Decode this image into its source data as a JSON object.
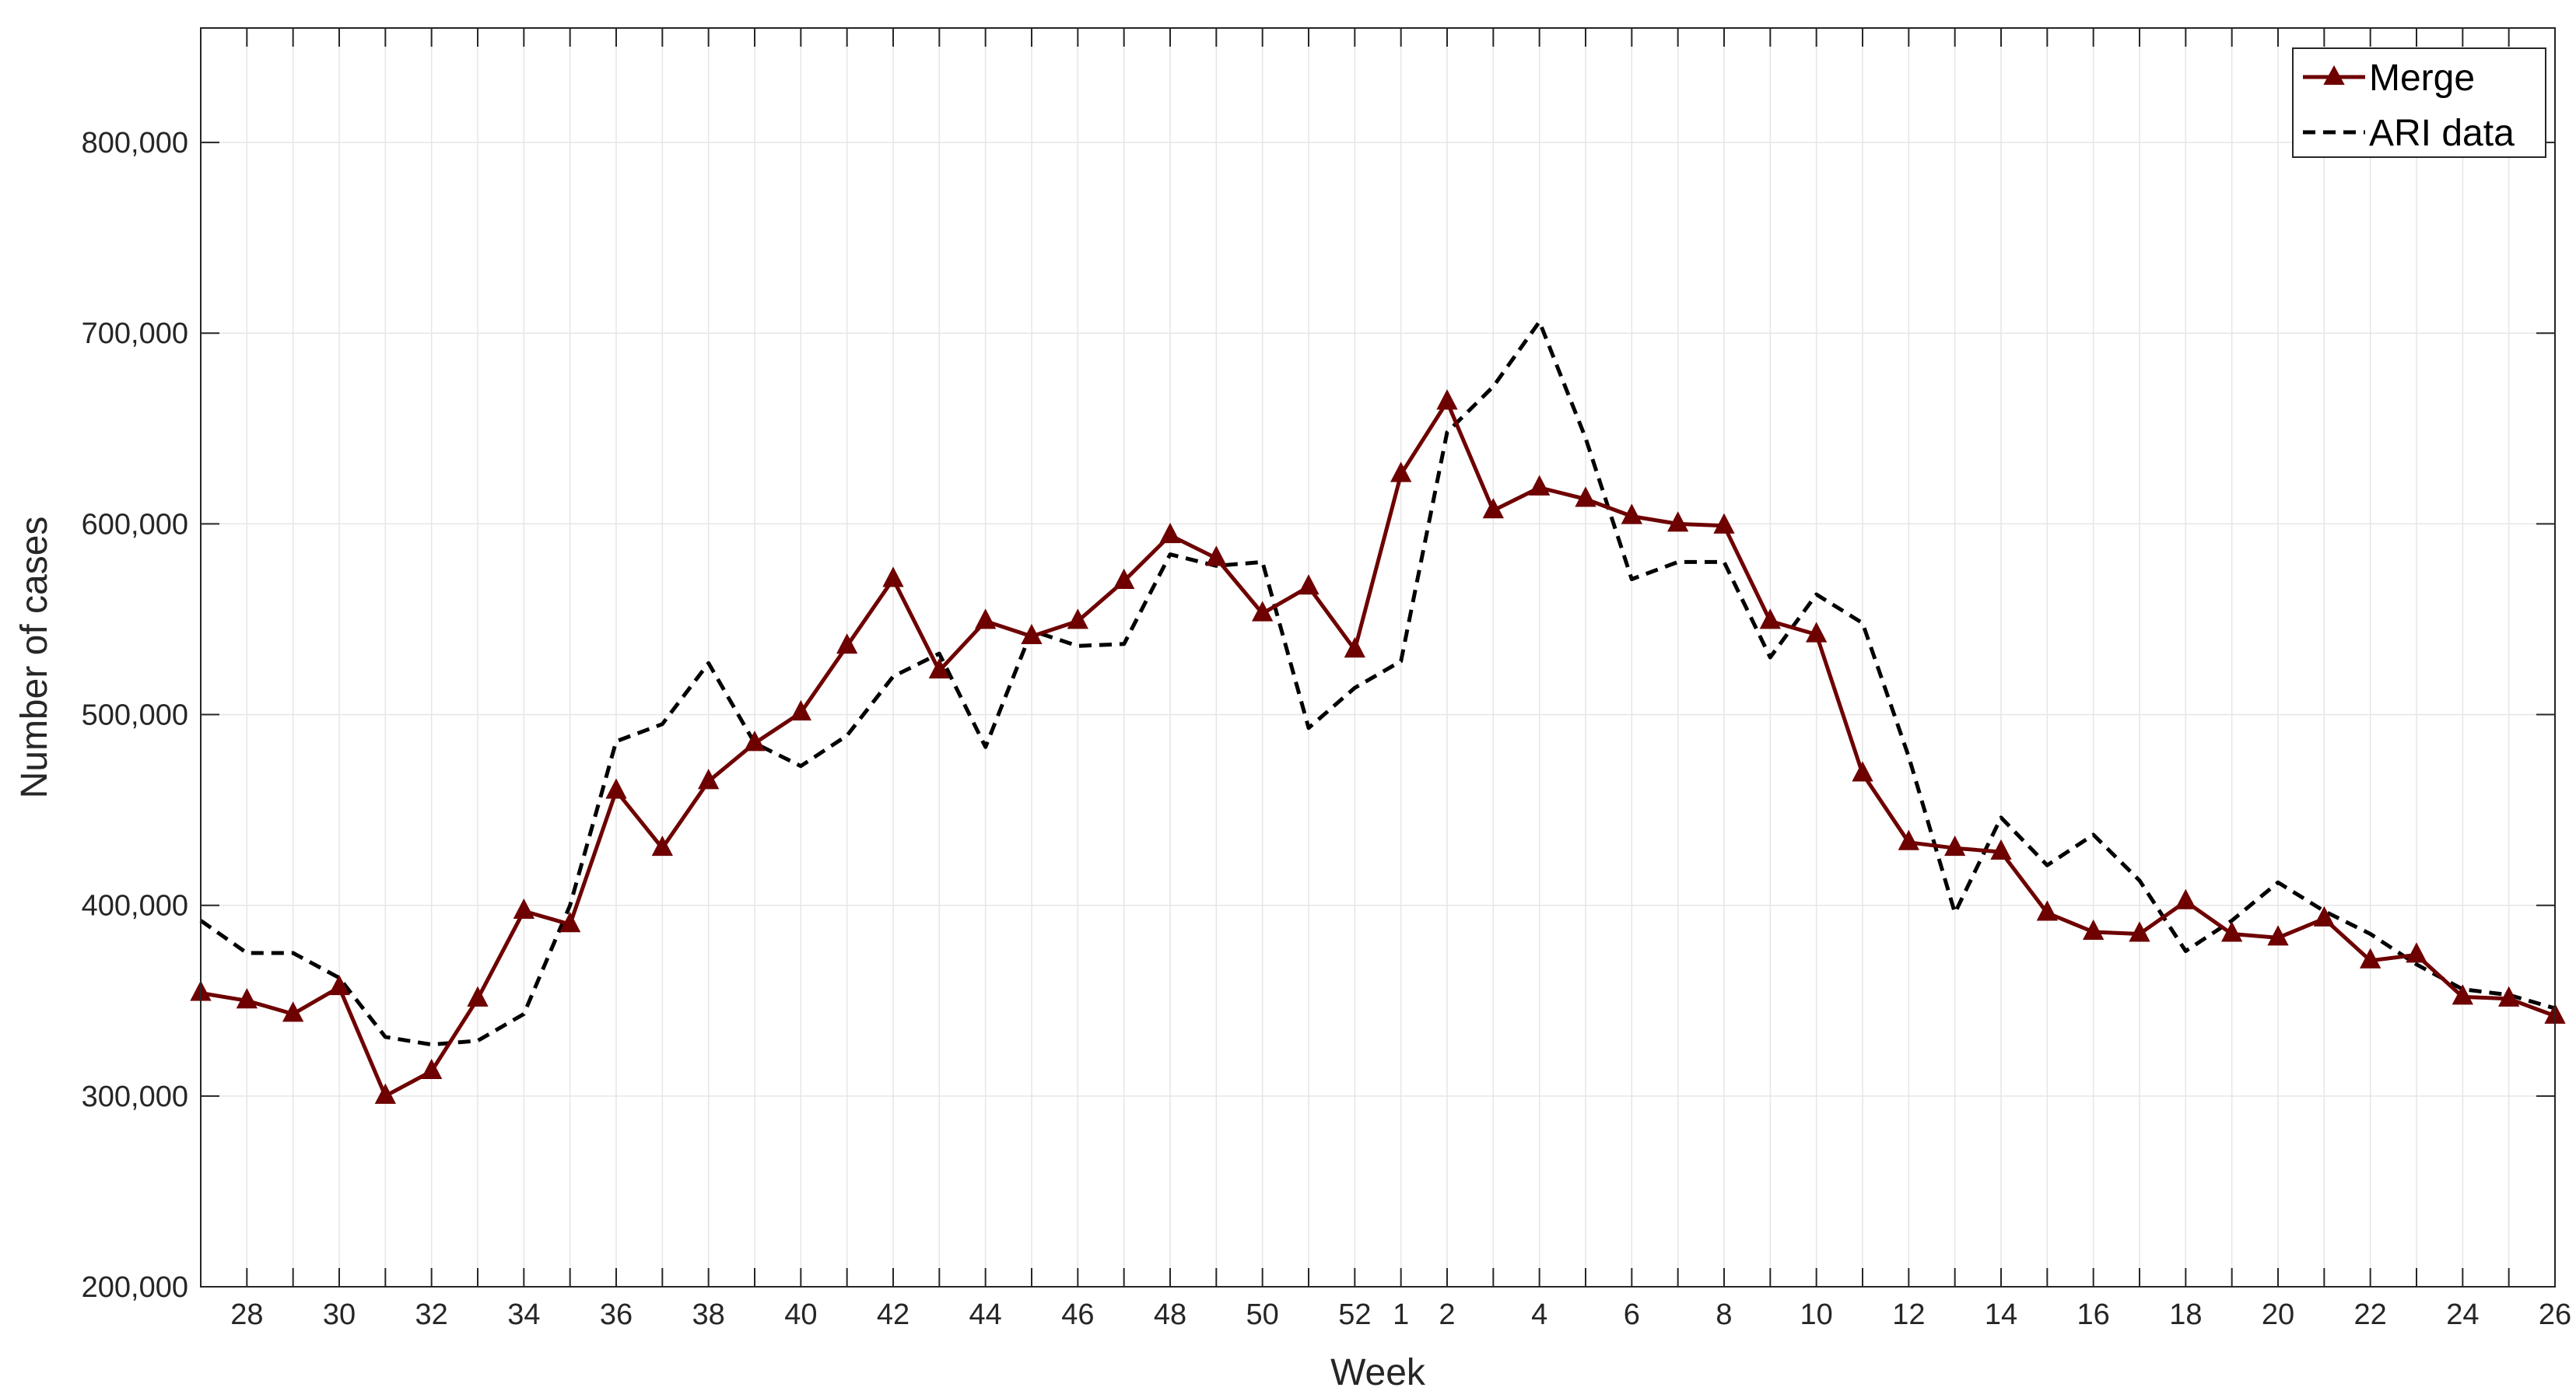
{
  "chart_data": {
    "type": "line",
    "xlabel": "Week",
    "ylabel": "Number of cases",
    "ylim": [
      200000,
      860000
    ],
    "y_ticks": [
      200000,
      300000,
      400000,
      500000,
      600000,
      700000,
      800000
    ],
    "y_tick_labels": [
      "200,000",
      "300,000",
      "400,000",
      "500,000",
      "600,000",
      "700,000",
      "800,000"
    ],
    "x_ticks": [
      "28",
      "30",
      "32",
      "34",
      "36",
      "38",
      "40",
      "42",
      "44",
      "46",
      "48",
      "50",
      "52",
      "1",
      "2",
      "4",
      "6",
      "8",
      "10",
      "12",
      "14",
      "16",
      "18",
      "20",
      "22",
      "24",
      "26"
    ],
    "x": [
      "27",
      "28",
      "29",
      "30",
      "31",
      "32",
      "33",
      "34",
      "35",
      "36",
      "37",
      "38",
      "39",
      "40",
      "41",
      "42",
      "43",
      "44",
      "45",
      "46",
      "47",
      "48",
      "49",
      "50",
      "51",
      "52",
      "1",
      "2",
      "3",
      "4",
      "5",
      "6",
      "7",
      "8",
      "9",
      "10",
      "11",
      "12",
      "13",
      "14",
      "15",
      "16",
      "17",
      "18",
      "19",
      "20",
      "21",
      "22",
      "23",
      "24",
      "25",
      "26"
    ],
    "grid": true,
    "legend_position": "top-right",
    "series": [
      {
        "name": "Merge",
        "color": "#6e0000",
        "style": "solid",
        "marker": "triangle",
        "values": [
          354000,
          350000,
          343000,
          357000,
          300000,
          313000,
          351000,
          397000,
          390000,
          460000,
          430000,
          465000,
          485000,
          501000,
          536000,
          571000,
          523000,
          549000,
          541000,
          549000,
          570000,
          594000,
          582000,
          553000,
          567000,
          534000,
          626000,
          664000,
          607000,
          619000,
          613000,
          604000,
          600000,
          599000,
          549000,
          542000,
          469000,
          433000,
          430000,
          428000,
          396000,
          386000,
          385000,
          402000,
          385000,
          383000,
          393000,
          371000,
          374000,
          352000,
          351000,
          342000
        ]
      },
      {
        "name": "ARI data",
        "color": "#000000",
        "style": "dashed",
        "marker": "none",
        "values": [
          392000,
          375000,
          375000,
          362000,
          331000,
          327000,
          329000,
          343000,
          400000,
          486000,
          495000,
          527000,
          485000,
          473000,
          489000,
          520000,
          532000,
          483000,
          544000,
          536000,
          537000,
          584000,
          578000,
          580000,
          493000,
          514000,
          528000,
          648000,
          672000,
          706000,
          645000,
          571000,
          580000,
          580000,
          530000,
          563000,
          548000,
          478000,
          396000,
          446000,
          421000,
          437000,
          413000,
          376000,
          392000,
          412000,
          397000,
          385000,
          369000,
          356000,
          353000,
          346000
        ]
      }
    ]
  }
}
